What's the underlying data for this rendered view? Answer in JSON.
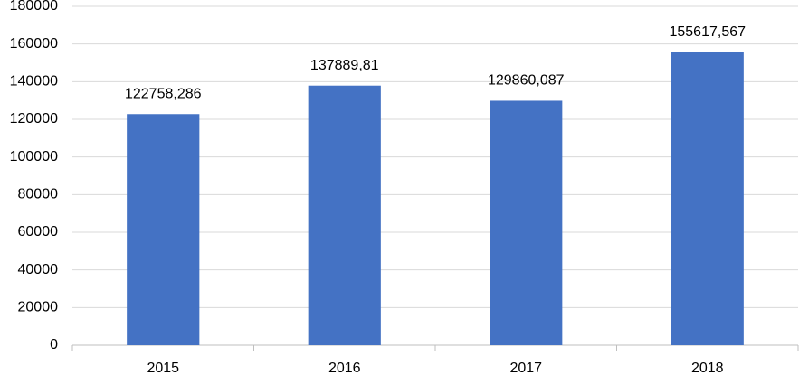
{
  "chart_data": {
    "type": "bar",
    "categories": [
      "2015",
      "2016",
      "2017",
      "2018"
    ],
    "values": [
      122758.286,
      137889.81,
      129860.087,
      155617.567
    ],
    "value_labels": [
      "122758,286",
      "137889,81",
      "129860,087",
      "155617,567"
    ],
    "color": "#4472c4",
    "ylim": [
      0,
      180000
    ],
    "yticks": [
      0,
      20000,
      40000,
      60000,
      80000,
      100000,
      120000,
      140000,
      160000,
      180000
    ],
    "grid": true
  }
}
